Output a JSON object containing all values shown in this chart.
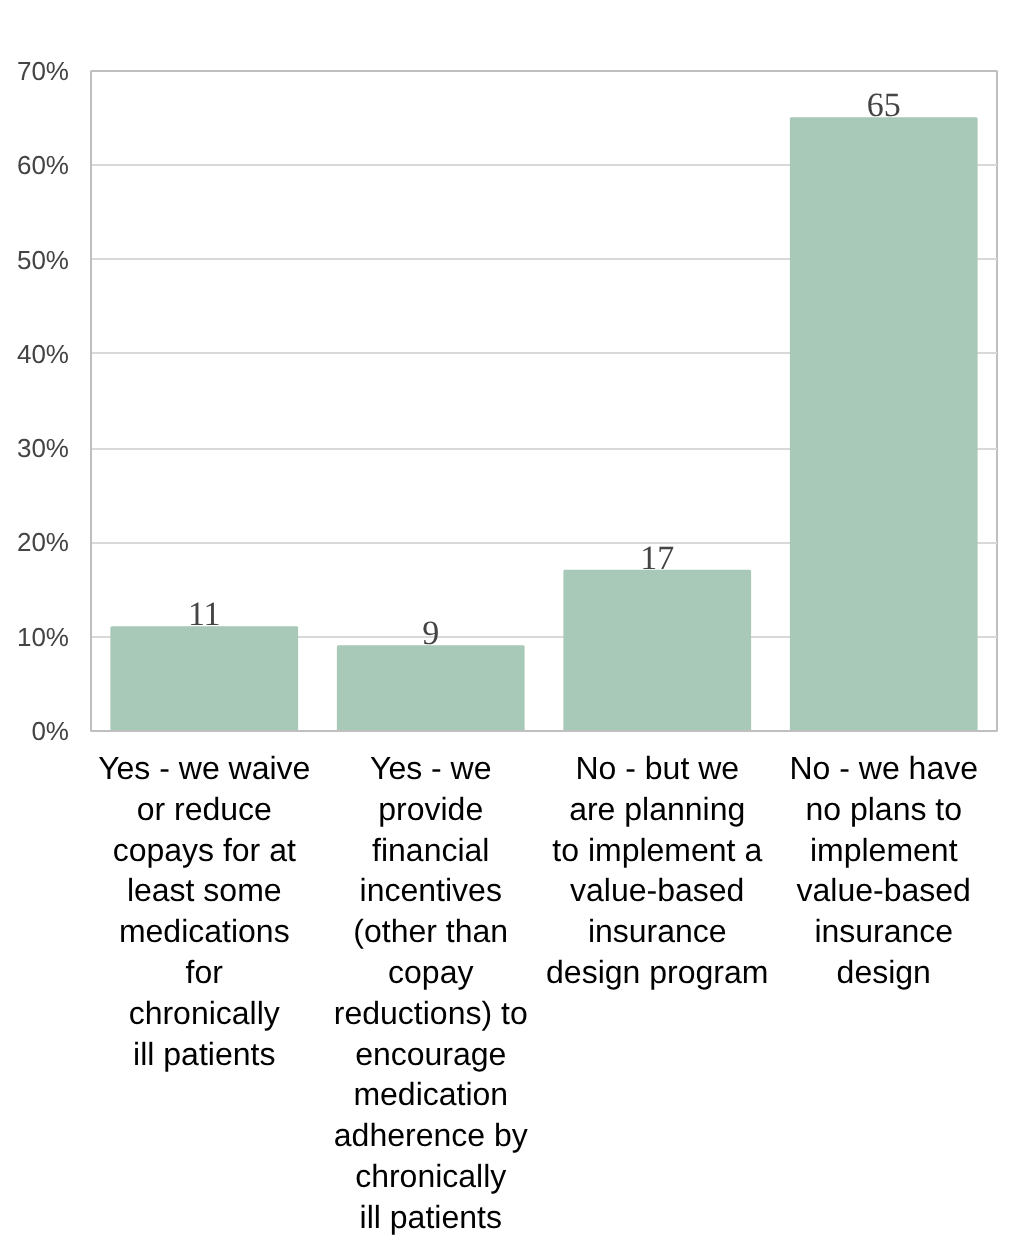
{
  "chart_data": {
    "type": "bar",
    "categories": [
      "Yes - we waive or reduce copays for at least some medications for chronically ill patients",
      "Yes - we provide financial incentives (other than copay reductions) to encourage medication adherence by chronically ill patients",
      "No - but we are planning to implement a value-based insurance design program",
      "No - we have no plans to implement value-based insurance design"
    ],
    "values": [
      11,
      9,
      17,
      65
    ],
    "color": "#a9c9b8",
    "data_labels": true,
    "ylim": [
      0,
      70
    ],
    "yticks": [
      {
        "value": 0,
        "label": "0%"
      },
      {
        "value": 10,
        "label": "10%"
      },
      {
        "value": 20,
        "label": "20%"
      },
      {
        "value": 30,
        "label": "30%"
      },
      {
        "value": 40,
        "label": "40%"
      },
      {
        "value": 50,
        "label": "50%"
      },
      {
        "value": 60,
        "label": "60%"
      },
      {
        "value": 70,
        "label": "70%"
      }
    ],
    "grid": "y"
  }
}
